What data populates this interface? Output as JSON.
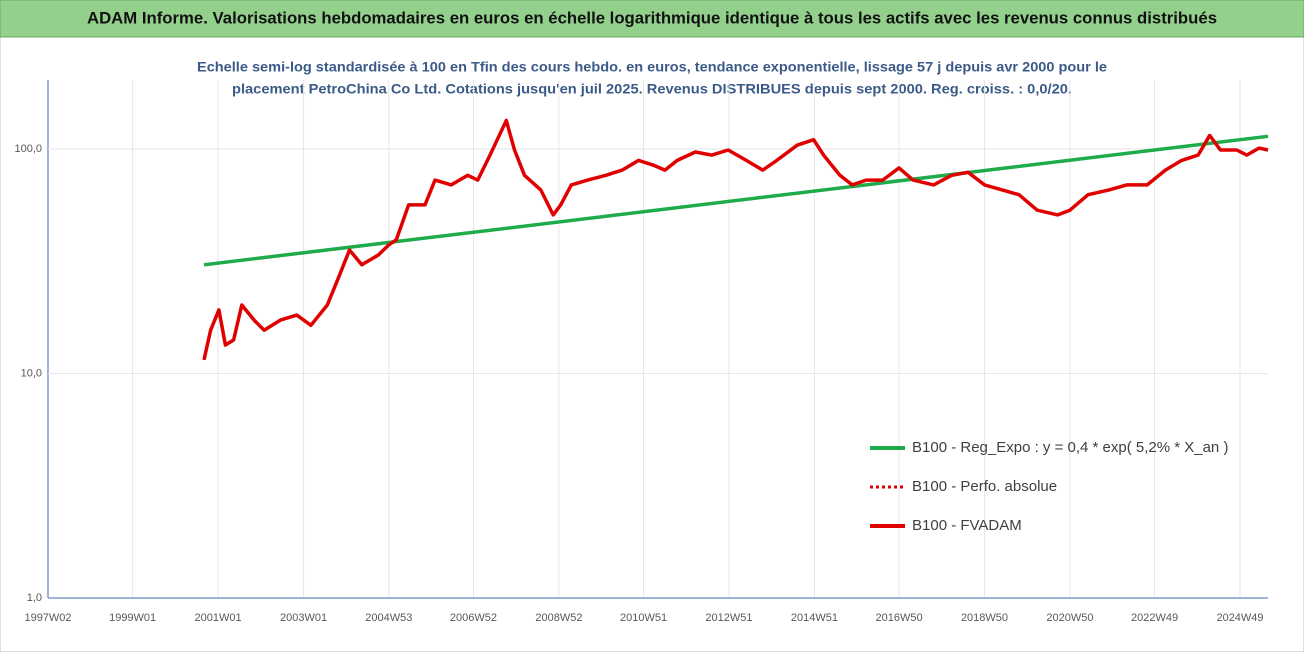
{
  "chart_data": {
    "type": "line",
    "title": "ADAM Informe. Valorisations hebdomadaires en euros en échelle logarithmique identique à tous les actifs avec les revenus connus distribués",
    "subtitle": [
      "Echelle semi-log standardisée à 100 en Tfin des cours hebdo. en euros, tendance exponentielle, lissage 57 j depuis avr 2000 pour le",
      "placement PetroChina Co Ltd. Cotations jusqu'en juil 2025. Revenus DISTRIBUES depuis sept 2000. Reg. croiss. : 0,0/20."
    ],
    "log_y": true,
    "grid": true,
    "xlim": [
      "1997W02",
      "2025W31"
    ],
    "xticks": [
      "1997W02",
      "1999W01",
      "2001W01",
      "2003W01",
      "2004W53",
      "2006W52",
      "2008W52",
      "2010W51",
      "2012W51",
      "2014W51",
      "2016W50",
      "2018W50",
      "2020W50",
      "2022W49",
      "2024W49"
    ],
    "ylim": [
      1,
      203
    ],
    "yticks": [
      {
        "value": 1,
        "label": "1,0"
      },
      {
        "value": 10,
        "label": "10,0"
      },
      {
        "value": 100,
        "label": "100,0"
      }
    ],
    "series": [
      {
        "name": "B100 - Reg_Expo : y = 0,4 * exp( 5,2% *  X_an )",
        "color": "#1fab4a",
        "dash": false,
        "x": [
          "2000W36",
          "2025W31"
        ],
        "values": [
          30.5,
          114
        ]
      },
      {
        "name": "B100 - Perfo. absolue",
        "color": "#e00000",
        "dash": true,
        "x": [
          "2000W36",
          "2000W44",
          "2001W02",
          "2001W10",
          "2001W20",
          "2001W30",
          "2001W45",
          "2002W05",
          "2002W25",
          "2002W45",
          "2003W10",
          "2003W30",
          "2003W45",
          "2004W05",
          "2004W20",
          "2004W40",
          "2004W53",
          "2005W10",
          "2005W25",
          "2005W45",
          "2006W05",
          "2006W25",
          "2006W45",
          "2007W05",
          "2007W20",
          "2007W40",
          "2007W50",
          "2008W10",
          "2008W30",
          "2008W45",
          "2009W02",
          "2009W15",
          "2009W35",
          "2010W05",
          "2010W25",
          "2010W45",
          "2011W10",
          "2011W25",
          "2011W40",
          "2012W10",
          "2012W30",
          "2012W50",
          "2013W20",
          "2013W40",
          "2014W05",
          "2014W30",
          "2014W50",
          "2015W10",
          "2015W30",
          "2015W45",
          "2016W10",
          "2016W30",
          "2016W50",
          "2017W15",
          "2017W40",
          "2018W10",
          "2018W30",
          "2018W50",
          "2019W20",
          "2019W40",
          "2020W10",
          "2020W35",
          "2020W50",
          "2021W20",
          "2021W45",
          "2022W15",
          "2022W40",
          "2023W10",
          "2023W30",
          "2023W50",
          "2024W05",
          "2024W12",
          "2024W25",
          "2024W45",
          "2025W05",
          "2025W20",
          "2025W31"
        ],
        "values": [
          11.5,
          15.6,
          19.2,
          13.4,
          14.1,
          20.2,
          17.3,
          15.6,
          17.3,
          18.2,
          16.4,
          20.2,
          27.4,
          35.5,
          30.5,
          33.7,
          37.4,
          39.4,
          56.4,
          56.4,
          72.7,
          69.2,
          76.4,
          72.7,
          94,
          134,
          99,
          76.4,
          65.6,
          50.9,
          56.4,
          69.2,
          72.7,
          76.4,
          80.6,
          89,
          85,
          80.6,
          89,
          97,
          94,
          99,
          89,
          80.6,
          89,
          104,
          110,
          94,
          76.4,
          69.2,
          72.7,
          72.7,
          82.4,
          72.7,
          69.2,
          76.4,
          78.8,
          69.2,
          65.6,
          62.6,
          53.4,
          50.9,
          53.4,
          62.6,
          65.6,
          69.2,
          69.2,
          80.6,
          89,
          94,
          104,
          115,
          99,
          99,
          94,
          101,
          99
        ]
      },
      {
        "name": "B100 - FVADAM",
        "color": "#e00000",
        "dash": false,
        "x": [
          "2000W36",
          "2000W44",
          "2001W02",
          "2001W10",
          "2001W20",
          "2001W30",
          "2001W45",
          "2002W05",
          "2002W25",
          "2002W45",
          "2003W10",
          "2003W30",
          "2003W45",
          "2004W05",
          "2004W20",
          "2004W40",
          "2004W53",
          "2005W10",
          "2005W25",
          "2005W45",
          "2006W05",
          "2006W25",
          "2006W45",
          "2007W05",
          "2007W20",
          "2007W40",
          "2007W50",
          "2008W10",
          "2008W30",
          "2008W45",
          "2009W02",
          "2009W15",
          "2009W35",
          "2010W05",
          "2010W25",
          "2010W45",
          "2011W10",
          "2011W25",
          "2011W40",
          "2012W10",
          "2012W30",
          "2012W50",
          "2013W20",
          "2013W40",
          "2014W05",
          "2014W30",
          "2014W50",
          "2015W10",
          "2015W30",
          "2015W45",
          "2016W10",
          "2016W30",
          "2016W50",
          "2017W15",
          "2017W40",
          "2018W10",
          "2018W30",
          "2018W50",
          "2019W20",
          "2019W40",
          "2020W10",
          "2020W35",
          "2020W50",
          "2021W20",
          "2021W45",
          "2022W15",
          "2022W40",
          "2023W10",
          "2023W30",
          "2023W50",
          "2024W05",
          "2024W12",
          "2024W25",
          "2024W45",
          "2025W05",
          "2025W20",
          "2025W31"
        ],
        "values": [
          11.5,
          15.6,
          19.2,
          13.4,
          14.1,
          20.2,
          17.3,
          15.6,
          17.3,
          18.2,
          16.4,
          20.2,
          27.4,
          35.5,
          30.5,
          33.7,
          37.4,
          39.4,
          56.4,
          56.4,
          72.7,
          69.2,
          76.4,
          72.7,
          94,
          134,
          99,
          76.4,
          65.6,
          50.9,
          56.4,
          69.2,
          72.7,
          76.4,
          80.6,
          89,
          85,
          80.6,
          89,
          97,
          94,
          99,
          89,
          80.6,
          89,
          104,
          110,
          94,
          76.4,
          69.2,
          72.7,
          72.7,
          82.4,
          72.7,
          69.2,
          76.4,
          78.8,
          69.2,
          65.6,
          62.6,
          53.4,
          50.9,
          53.4,
          62.6,
          65.6,
          69.2,
          69.2,
          80.6,
          89,
          94,
          104,
          115,
          99,
          99,
          94,
          101,
          99
        ]
      }
    ]
  }
}
